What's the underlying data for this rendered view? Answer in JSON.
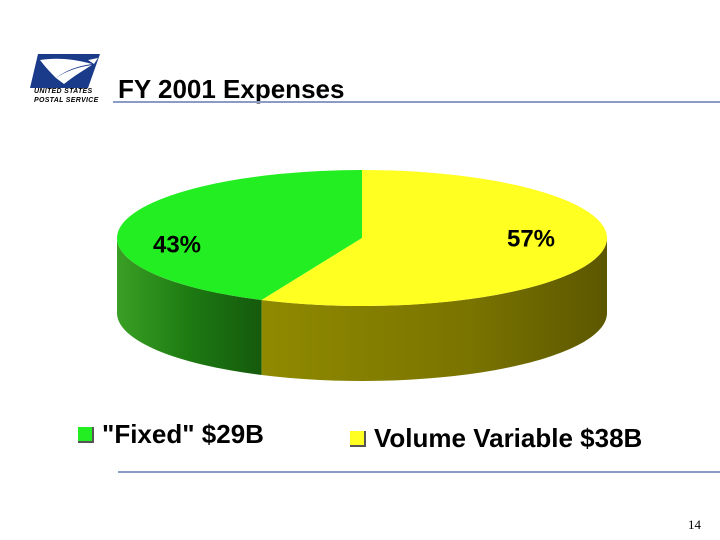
{
  "header": {
    "logo_line1": "UNITED STATES",
    "logo_line2": "POSTAL SERVICE",
    "logo_icon": "eagle-icon",
    "title": "FY 2001 Expenses"
  },
  "chart_data": {
    "type": "pie",
    "style": "3d",
    "title": "FY 2001 Expenses",
    "slices": [
      {
        "label": "\"Fixed\" $29B",
        "value": 29,
        "percent_label": "43%",
        "color": "#22ee22",
        "side_color": "#1d7a12"
      },
      {
        "label": "Volume Variable $38B",
        "value": 38,
        "percent_label": "57%",
        "color": "#ffff22",
        "side_color": "#807a00"
      }
    ],
    "legend_position": "bottom"
  },
  "footer": {
    "page_number": "14"
  }
}
